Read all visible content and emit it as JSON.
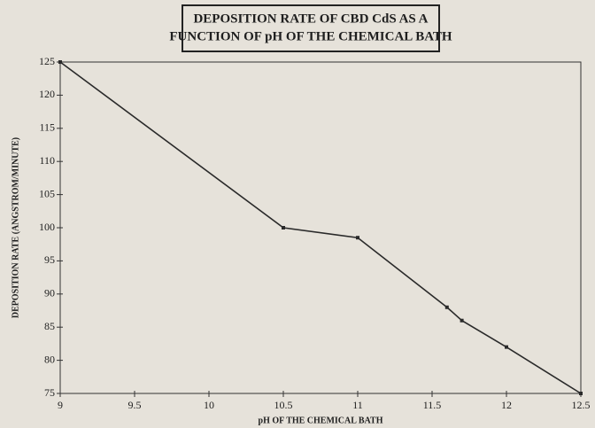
{
  "chart_data": {
    "type": "line",
    "title": "DEPOSITION RATE OF CBD CdS AS A FUNCTION OF pH OF THE CHEMICAL BATH",
    "xlabel": "pH OF THE CHEMICAL BATH",
    "ylabel": "DEPOSITION RATE (ANGSTROM/MINUTE)",
    "x": [
      9,
      10.5,
      11,
      11.6,
      11.7,
      12,
      12.5
    ],
    "series": [
      {
        "name": "Deposition rate",
        "color": "#2a2a2a",
        "values": [
          125,
          100,
          98.5,
          88,
          86,
          82,
          75
        ]
      }
    ],
    "xlim": [
      9,
      12.5
    ],
    "xticks": [
      9,
      9.5,
      10,
      10.5,
      11,
      11.5,
      12,
      12.5
    ],
    "ylim": [
      75,
      125
    ],
    "yticks": [
      75,
      80,
      85,
      90,
      95,
      100,
      105,
      110,
      115,
      120,
      125
    ]
  }
}
